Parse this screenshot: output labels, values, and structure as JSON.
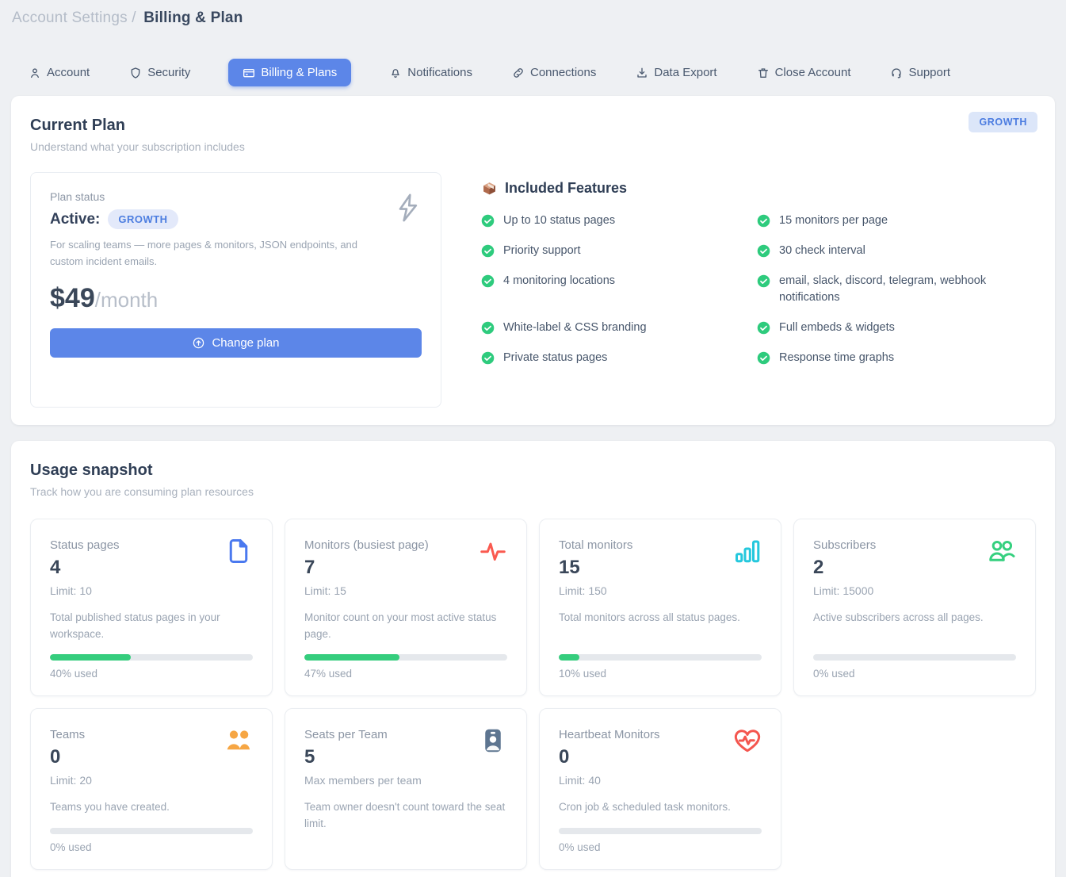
{
  "breadcrumb": {
    "section": "Account Settings",
    "separator": "/",
    "page": "Billing & Plan"
  },
  "tabs": [
    {
      "label": "Account",
      "icon": "person-icon",
      "active": false
    },
    {
      "label": "Security",
      "icon": "shield-icon",
      "active": false
    },
    {
      "label": "Billing & Plans",
      "icon": "credit-card-icon",
      "active": true
    },
    {
      "label": "Notifications",
      "icon": "bell-icon",
      "active": false
    },
    {
      "label": "Connections",
      "icon": "link-icon",
      "active": false
    },
    {
      "label": "Data Export",
      "icon": "download-icon",
      "active": false
    },
    {
      "label": "Close Account",
      "icon": "trash-icon",
      "active": false
    },
    {
      "label": "Support",
      "icon": "headset-icon",
      "active": false
    }
  ],
  "current_plan": {
    "title": "Current Plan",
    "subtitle": "Understand what your subscription includes",
    "corner_badge": "GROWTH",
    "plan_status": {
      "label": "Plan status",
      "status": "Active:",
      "badge": "GROWTH",
      "description": "For scaling teams — more pages & monitors, JSON endpoints, and custom incident emails.",
      "price": "$49",
      "period": "/month",
      "change_button": "Change plan"
    },
    "features": {
      "title": "Included Features",
      "left": [
        "Up to 10 status pages",
        "Priority support",
        "4 monitoring locations",
        "White-label & CSS branding",
        "Private status pages"
      ],
      "right": [
        "15 monitors per page",
        "30 check interval",
        "email, slack, discord, telegram, webhook notifications",
        "Full embeds & widgets",
        "Response time graphs"
      ]
    }
  },
  "usage": {
    "title": "Usage snapshot",
    "subtitle": "Track how you are consuming plan resources",
    "cards": [
      {
        "title": "Status pages",
        "value": "4",
        "limit": "Limit: 10",
        "description": "Total published status pages in your workspace.",
        "percent": 40,
        "percent_label": "40% used",
        "icon": "file-icon",
        "icon_color": "#4a79ef"
      },
      {
        "title": "Monitors (busiest page)",
        "value": "7",
        "limit": "Limit: 15",
        "description": "Monitor count on your most active status page.",
        "percent": 47,
        "percent_label": "47% used",
        "icon": "activity-icon",
        "icon_color": "#fa5a50"
      },
      {
        "title": "Total monitors",
        "value": "15",
        "limit": "Limit: 150",
        "description": "Total monitors across all status pages.",
        "percent": 10,
        "percent_label": "10% used",
        "icon": "bar-chart-icon",
        "icon_color": "#25c8dd"
      },
      {
        "title": "Subscribers",
        "value": "2",
        "limit": "Limit: 15000",
        "description": "Active subscribers across all pages.",
        "percent": 0,
        "percent_label": "0% used",
        "icon": "users-outline-icon",
        "icon_color": "#35d07f"
      },
      {
        "title": "Teams",
        "value": "0",
        "limit": "Limit: 20",
        "description": "Teams you have created.",
        "percent": 0,
        "percent_label": "0% used",
        "icon": "users-filled-icon",
        "icon_color": "#f6a644"
      },
      {
        "title": "Seats per Team",
        "value": "5",
        "limit": "Max members per team",
        "description": "Team owner doesn't count toward the seat limit.",
        "percent": null,
        "percent_label": "",
        "icon": "id-badge-icon",
        "icon_color": "#5d7590"
      },
      {
        "title": "Heartbeat Monitors",
        "value": "0",
        "limit": "Limit: 40",
        "description": "Cron job & scheduled task monitors.",
        "percent": 0,
        "percent_label": "0% used",
        "icon": "heart-pulse-icon",
        "icon_color": "#f4564f"
      }
    ]
  },
  "theme": {
    "accent_blue": "#5c86e8",
    "badge_bg": "#dce6f9",
    "badge_text": "#4a7be0",
    "check_green": "#2ecb7d",
    "progress_green": "#35cd7d",
    "progress_track": "#e5e8ec",
    "page_bg": "#eef0f3",
    "heading_text": "#2f3e55",
    "muted_text": "#9aa4b2"
  }
}
